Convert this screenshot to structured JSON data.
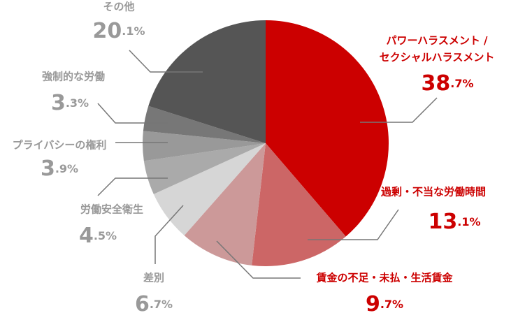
{
  "chart_data": {
    "type": "pie",
    "categories": [
      "パワーハラスメント / セクシャルハラスメント",
      "過剰・不当な労働時間",
      "賃金の不足・未払・生活賃金",
      "差別",
      "労働安全衛生",
      "プライバシーの権利",
      "強制的な労働",
      "その他"
    ],
    "values": [
      38.7,
      13.1,
      9.7,
      6.7,
      4.5,
      3.9,
      3.3,
      20.1
    ],
    "value_labels": [
      "38.7%",
      "13.1%",
      "9.7%",
      "6.7%",
      "4.5%",
      "3.9%",
      "3.3%",
      "20.1%"
    ],
    "colors": [
      "#cc0000",
      "#cc6666",
      "#cc9999",
      "#d6d6d6",
      "#aaaaaa",
      "#999999",
      "#777777",
      "#555555"
    ],
    "label_colors": [
      "#cc0000",
      "#cc0000",
      "#cc0000",
      "#999999",
      "#999999",
      "#999999",
      "#999999",
      "#999999"
    ]
  }
}
